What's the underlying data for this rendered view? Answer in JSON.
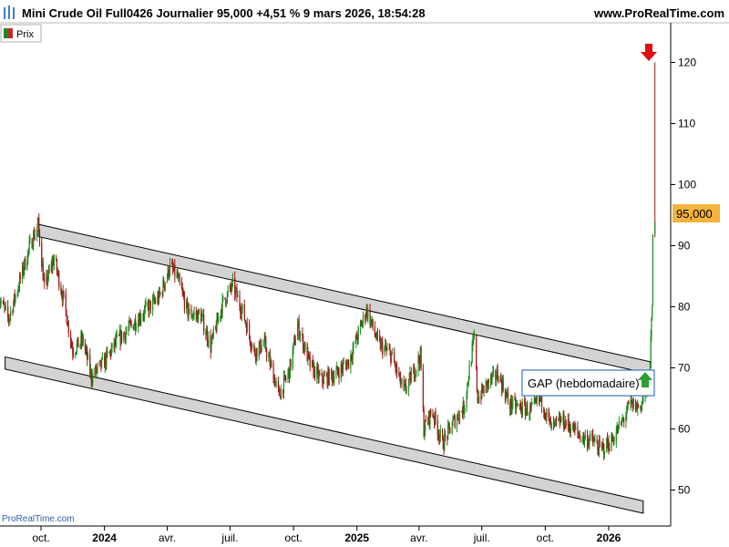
{
  "header": {
    "title": "Mini Crude Oil Full0426 Journalier 95,000 +4,51 % 9 mars 2026, 18:54:28",
    "site": "www.ProRealTime.com"
  },
  "legend": {
    "label": "Prix",
    "up_color": "#1f8a1f",
    "down_color": "#c62828"
  },
  "watermark": "ProRealTime.com",
  "annotations": {
    "gap_label": "GAP (hebdomadaire)",
    "gap_arrow_color": "#2e9e2e",
    "top_arrow_color": "#e01010"
  },
  "colors": {
    "up": "#1f8a1f",
    "down": "#a01818",
    "channel_fill": "#d3d3d3",
    "price_tag": "#f3b33d"
  },
  "chart_data": {
    "type": "line",
    "title": "Mini Crude Oil Full0426 Journalier",
    "ylim": [
      45,
      125
    ],
    "y_ticks": [
      50,
      60,
      70,
      80,
      90,
      100,
      110,
      120
    ],
    "x_ticks": [
      {
        "label": "oct.",
        "date": "2023-10-01",
        "bold": false
      },
      {
        "label": "2024",
        "date": "2024-01-01",
        "bold": true
      },
      {
        "label": "avr.",
        "date": "2024-04-01",
        "bold": false
      },
      {
        "label": "juil.",
        "date": "2024-07-01",
        "bold": false
      },
      {
        "label": "oct.",
        "date": "2024-10-01",
        "bold": false
      },
      {
        "label": "2025",
        "date": "2025-01-01",
        "bold": true
      },
      {
        "label": "avr.",
        "date": "2025-04-01",
        "bold": false
      },
      {
        "label": "juil.",
        "date": "2025-07-01",
        "bold": false
      },
      {
        "label": "oct.",
        "date": "2025-10-01",
        "bold": false
      },
      {
        "label": "2026",
        "date": "2026-01-01",
        "bold": true
      }
    ],
    "last_price": 95.0,
    "last_price_label": "95,000",
    "series": [
      {
        "name": "Prix",
        "points": [
          [
            "2023-08-01",
            81.5
          ],
          [
            "2023-08-15",
            78.0
          ],
          [
            "2023-09-01",
            84.5
          ],
          [
            "2023-09-15",
            90.0
          ],
          [
            "2023-09-27",
            93.5
          ],
          [
            "2023-10-06",
            83.0
          ],
          [
            "2023-10-20",
            88.0
          ],
          [
            "2023-11-03",
            81.0
          ],
          [
            "2023-11-16",
            73.0
          ],
          [
            "2023-12-01",
            74.5
          ],
          [
            "2023-12-13",
            68.5
          ],
          [
            "2024-01-01",
            71.0
          ],
          [
            "2024-01-20",
            74.5
          ],
          [
            "2024-02-10",
            77.0
          ],
          [
            "2024-03-01",
            79.5
          ],
          [
            "2024-03-20",
            81.5
          ],
          [
            "2024-04-05",
            86.5
          ],
          [
            "2024-04-15",
            85.0
          ],
          [
            "2024-05-01",
            79.0
          ],
          [
            "2024-05-20",
            78.5
          ],
          [
            "2024-06-03",
            73.5
          ],
          [
            "2024-06-20",
            80.5
          ],
          [
            "2024-07-05",
            83.5
          ],
          [
            "2024-07-20",
            79.0
          ],
          [
            "2024-08-05",
            72.5
          ],
          [
            "2024-08-20",
            74.0
          ],
          [
            "2024-09-10",
            65.5
          ],
          [
            "2024-09-25",
            69.5
          ],
          [
            "2024-10-07",
            77.0
          ],
          [
            "2024-10-25",
            70.5
          ],
          [
            "2024-11-10",
            68.0
          ],
          [
            "2024-12-01",
            69.0
          ],
          [
            "2024-12-20",
            71.0
          ],
          [
            "2025-01-15",
            79.5
          ],
          [
            "2025-02-01",
            74.0
          ],
          [
            "2025-02-20",
            72.0
          ],
          [
            "2025-03-10",
            66.0
          ],
          [
            "2025-03-25",
            69.5
          ],
          [
            "2025-04-03",
            72.0
          ],
          [
            "2025-04-08",
            60.0
          ],
          [
            "2025-04-20",
            63.0
          ],
          [
            "2025-05-05",
            57.5
          ],
          [
            "2025-05-20",
            61.0
          ],
          [
            "2025-06-05",
            63.5
          ],
          [
            "2025-06-20",
            75.0
          ],
          [
            "2025-06-25",
            65.0
          ],
          [
            "2025-07-10",
            67.5
          ],
          [
            "2025-07-25",
            69.0
          ],
          [
            "2025-08-10",
            64.0
          ],
          [
            "2025-08-25",
            63.5
          ],
          [
            "2025-09-10",
            63.0
          ],
          [
            "2025-09-25",
            65.0
          ],
          [
            "2025-10-10",
            60.0
          ],
          [
            "2025-10-25",
            61.5
          ],
          [
            "2025-11-10",
            60.0
          ],
          [
            "2025-11-25",
            58.5
          ],
          [
            "2025-12-10",
            58.0
          ],
          [
            "2025-12-20",
            56.5
          ],
          [
            "2026-01-05",
            58.0
          ],
          [
            "2026-01-20",
            61.0
          ],
          [
            "2026-02-01",
            64.0
          ],
          [
            "2026-02-15",
            63.5
          ],
          [
            "2026-02-25",
            66.5
          ],
          [
            "2026-03-02",
            71.0
          ],
          [
            "2026-03-05",
            80.0
          ],
          [
            "2026-03-06",
            91.0
          ],
          [
            "2026-03-09",
            95.0
          ]
        ],
        "spike_high": 120.0
      }
    ],
    "channel_upper": {
      "start": {
        "date": "2023-09-27",
        "y_top": 93.5,
        "y_bottom": 91.5
      },
      "end": {
        "date": "2026-03-02",
        "y_top": 71.0,
        "y_bottom": 69.0
      }
    },
    "channel_lower": {
      "start": {
        "date": "2023-08-10",
        "y_top": 71.8,
        "y_bottom": 69.8
      },
      "end": {
        "date": "2026-02-20",
        "y_top": 48.2,
        "y_bottom": 46.2
      }
    }
  }
}
